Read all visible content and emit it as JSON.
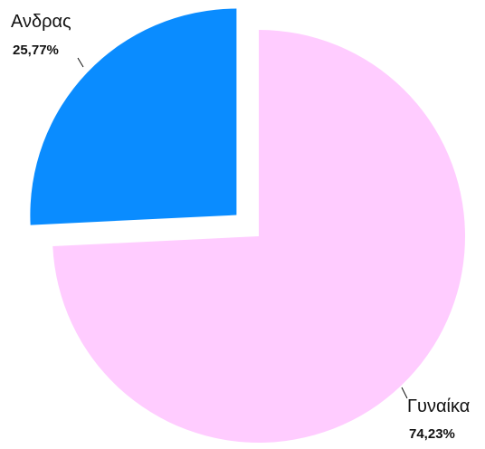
{
  "chart_data": {
    "type": "pie",
    "title": "",
    "slices": [
      {
        "label": "Ανδρας",
        "value": 25.77,
        "display": "25,77%",
        "color": "#0a8cff",
        "exploded": true
      },
      {
        "label": "Γυναίκα",
        "value": 74.23,
        "display": "74,23%",
        "color": "#ffccff",
        "exploded": false
      }
    ],
    "legend": "none",
    "data_labels": "outside"
  }
}
